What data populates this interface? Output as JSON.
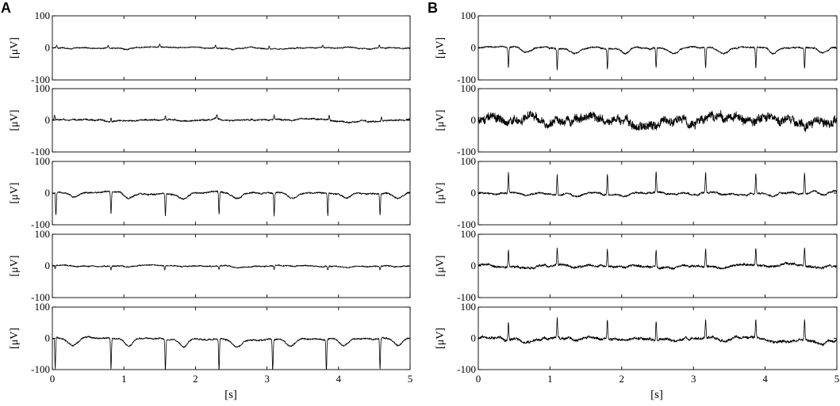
{
  "panels": [
    {
      "label": "A"
    },
    {
      "label": "B"
    }
  ],
  "axes": {
    "ylabel": "[μV]",
    "xlabel": "[s]",
    "yticks": [
      "100",
      "0",
      "-100"
    ],
    "xticks": [
      "0",
      "1",
      "2",
      "3",
      "4",
      "5"
    ]
  },
  "chart_data": [
    {
      "panel": "A",
      "type": "line",
      "row": 1,
      "x_range": [
        0,
        5
      ],
      "ylim": [
        -100,
        100
      ],
      "beats_s": [
        0.06,
        0.78,
        1.5,
        2.28,
        3.03,
        3.78,
        4.57
      ],
      "spike_uv": 8,
      "baseline_noise_uv": 3,
      "title": "",
      "xlabel": "",
      "ylabel": "[μV]"
    },
    {
      "panel": "A",
      "type": "line",
      "row": 2,
      "x_range": [
        0,
        5
      ],
      "ylim": [
        -100,
        100
      ],
      "beats_s": [
        0.03,
        0.82,
        1.58,
        2.3,
        3.1,
        3.87,
        4.6
      ],
      "spike_uv": 14,
      "baseline_noise_uv": 4,
      "title": "",
      "xlabel": "",
      "ylabel": "[μV]"
    },
    {
      "panel": "A",
      "type": "line",
      "row": 3,
      "x_range": [
        0,
        5
      ],
      "ylim": [
        -100,
        100
      ],
      "beats_s": [
        0.05,
        0.82,
        1.58,
        2.33,
        3.1,
        3.85,
        4.58
      ],
      "spike_uv": -70,
      "baseline_noise_uv": 4,
      "title": "",
      "xlabel": "",
      "ylabel": "[μV]"
    },
    {
      "panel": "A",
      "type": "line",
      "row": 4,
      "x_range": [
        0,
        5
      ],
      "ylim": [
        -100,
        100
      ],
      "beats_s": [
        0.04,
        0.82,
        1.57,
        2.33,
        3.1,
        3.85,
        4.58
      ],
      "spike_uv": -12,
      "baseline_noise_uv": 3,
      "title": "",
      "xlabel": "",
      "ylabel": "[μV]"
    },
    {
      "panel": "A",
      "type": "line",
      "row": 5,
      "x_range": [
        0,
        5
      ],
      "ylim": [
        -100,
        100
      ],
      "beats_s": [
        0.04,
        0.82,
        1.58,
        2.33,
        3.08,
        3.83,
        4.58
      ],
      "spike_uv": -100,
      "baseline_noise_uv": 4,
      "title": "",
      "xlabel": "",
      "ylabel": "[μV]"
    },
    {
      "panel": "B",
      "type": "line",
      "row": 1,
      "x_range": [
        0,
        5
      ],
      "ylim": [
        -100,
        100
      ],
      "beats_s": [
        0.42,
        1.1,
        1.8,
        2.48,
        3.17,
        3.87,
        4.55
      ],
      "spike_uv": -65,
      "baseline_noise_uv": 4,
      "title": "",
      "xlabel": "",
      "ylabel": "[μV]"
    },
    {
      "panel": "B",
      "type": "line",
      "row": 2,
      "x_range": [
        0,
        5
      ],
      "ylim": [
        -100,
        100
      ],
      "beats_s": [],
      "spike_uv": 0,
      "baseline_noise_uv": 22,
      "title": "",
      "xlabel": "",
      "ylabel": "[μV]"
    },
    {
      "panel": "B",
      "type": "line",
      "row": 3,
      "x_range": [
        0,
        5
      ],
      "ylim": [
        -100,
        100
      ],
      "beats_s": [
        0.42,
        1.1,
        1.8,
        2.48,
        3.17,
        3.87,
        4.55
      ],
      "spike_uv": 65,
      "baseline_noise_uv": 5,
      "title": "",
      "xlabel": "",
      "ylabel": "[μV]"
    },
    {
      "panel": "B",
      "type": "line",
      "row": 4,
      "x_range": [
        0,
        5
      ],
      "ylim": [
        -100,
        100
      ],
      "beats_s": [
        0.42,
        1.1,
        1.8,
        2.48,
        3.17,
        3.87,
        4.55
      ],
      "spike_uv": 55,
      "baseline_noise_uv": 6,
      "title": "",
      "xlabel": "",
      "ylabel": "[μV]"
    },
    {
      "panel": "B",
      "type": "line",
      "row": 5,
      "x_range": [
        0,
        5
      ],
      "ylim": [
        -100,
        100
      ],
      "beats_s": [
        0.42,
        1.1,
        1.8,
        2.48,
        3.17,
        3.87,
        4.55
      ],
      "spike_uv": 60,
      "baseline_noise_uv": 7,
      "title": "",
      "xlabel": "",
      "ylabel": "[μV]"
    }
  ]
}
